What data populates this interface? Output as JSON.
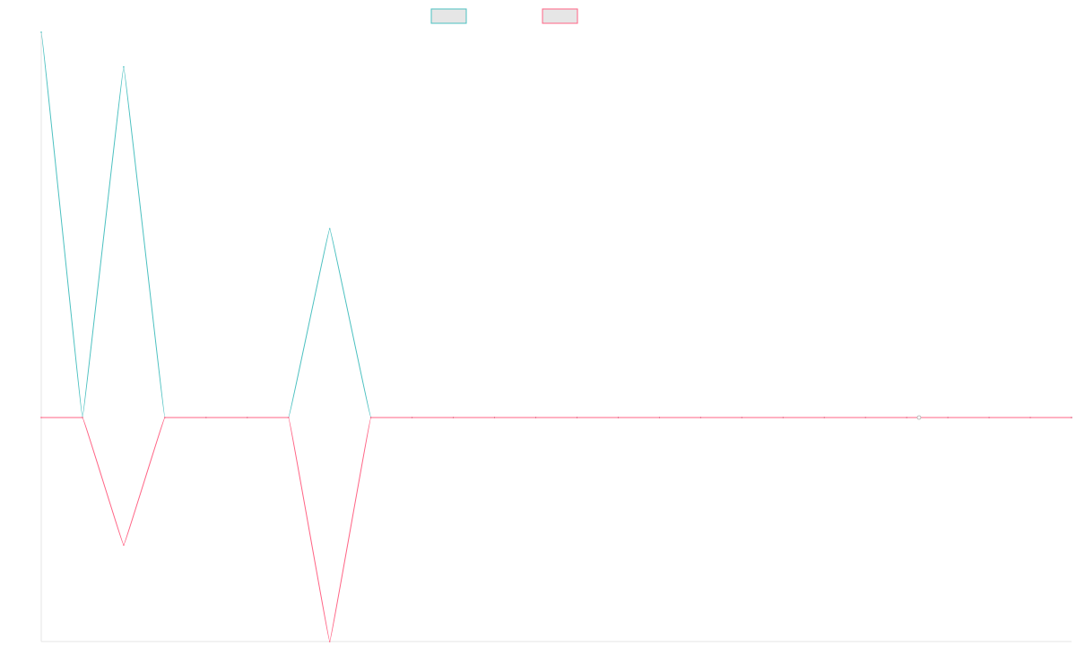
{
  "chart_data": {
    "type": "line",
    "title": "",
    "xlabel": "",
    "ylabel": "",
    "grid": false,
    "legend_position": "top-center",
    "x": [
      0,
      1,
      2,
      3,
      4,
      5,
      6,
      7,
      8,
      9,
      10,
      11,
      12,
      13,
      14,
      15,
      16,
      17,
      18,
      19,
      20,
      21,
      22,
      23,
      24,
      25
    ],
    "xlim": [
      0,
      25
    ],
    "ylim": [
      -0.58,
      1
    ],
    "series": [
      {
        "name": "",
        "color": "#4bc0c0",
        "fill": "#e6e6e6",
        "values": [
          1,
          0,
          0.91,
          0,
          0,
          0,
          0,
          0.49,
          0,
          0,
          0,
          0,
          0,
          0,
          0,
          0,
          0,
          0,
          0,
          0,
          0,
          0,
          0,
          0,
          0,
          0
        ]
      },
      {
        "name": "",
        "color": "#ff6384",
        "fill": "#e6e6e6",
        "values": [
          0,
          0,
          -0.33,
          0,
          0,
          0,
          0,
          -0.58,
          0,
          0,
          0,
          0,
          0,
          0,
          0,
          0,
          0,
          0,
          0,
          0,
          0,
          0,
          0,
          0,
          0,
          0
        ]
      }
    ]
  }
}
